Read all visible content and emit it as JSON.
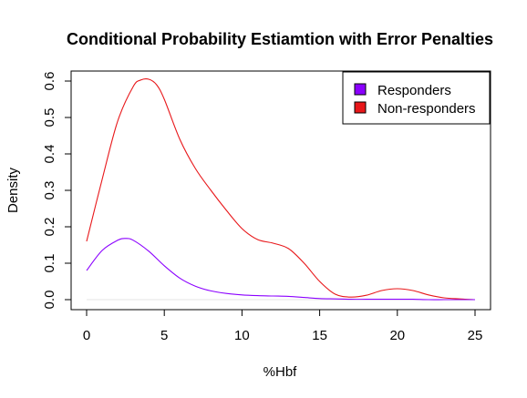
{
  "chart_data": {
    "type": "line",
    "title": "Conditional Probability Estiamtion with Error Penalties",
    "xlabel": "%Hbf",
    "ylabel": "Density",
    "xlim": [
      0,
      25
    ],
    "ylim": [
      0,
      0.6
    ],
    "x_ticks": [
      "0",
      "5",
      "10",
      "15",
      "20",
      "25"
    ],
    "y_ticks": [
      "0.0",
      "0.1",
      "0.2",
      "0.3",
      "0.4",
      "0.5",
      "0.6"
    ],
    "grid": false,
    "legend_position": "top-right",
    "series": [
      {
        "name": "Responders",
        "color": "#8b00ff",
        "x": [
          0,
          1,
          2,
          2.5,
          3,
          4,
          5,
          6,
          7,
          8,
          9,
          10,
          11,
          12,
          13,
          14,
          15,
          16,
          17,
          18,
          19,
          20,
          21,
          22,
          23,
          24,
          25
        ],
        "y": [
          0.08,
          0.135,
          0.163,
          0.168,
          0.163,
          0.133,
          0.093,
          0.059,
          0.037,
          0.024,
          0.017,
          0.013,
          0.011,
          0.01,
          0.009,
          0.006,
          0.003,
          0.002,
          0.001,
          0.001,
          0.001,
          0.001,
          0.001,
          0.0,
          0.0,
          0.0,
          0.0
        ]
      },
      {
        "name": "Non-responders",
        "color": "#e8171a",
        "x": [
          0,
          1,
          2,
          3,
          3.5,
          4,
          4.5,
          5,
          6,
          7,
          8,
          9,
          10,
          11,
          12,
          13,
          14,
          15,
          16,
          17,
          18,
          19,
          20,
          21,
          22,
          23,
          24,
          25
        ],
        "y": [
          0.16,
          0.33,
          0.49,
          0.585,
          0.603,
          0.605,
          0.59,
          0.55,
          0.44,
          0.36,
          0.3,
          0.245,
          0.195,
          0.165,
          0.155,
          0.14,
          0.1,
          0.05,
          0.015,
          0.007,
          0.012,
          0.025,
          0.03,
          0.025,
          0.013,
          0.005,
          0.002,
          0.0
        ]
      }
    ]
  }
}
